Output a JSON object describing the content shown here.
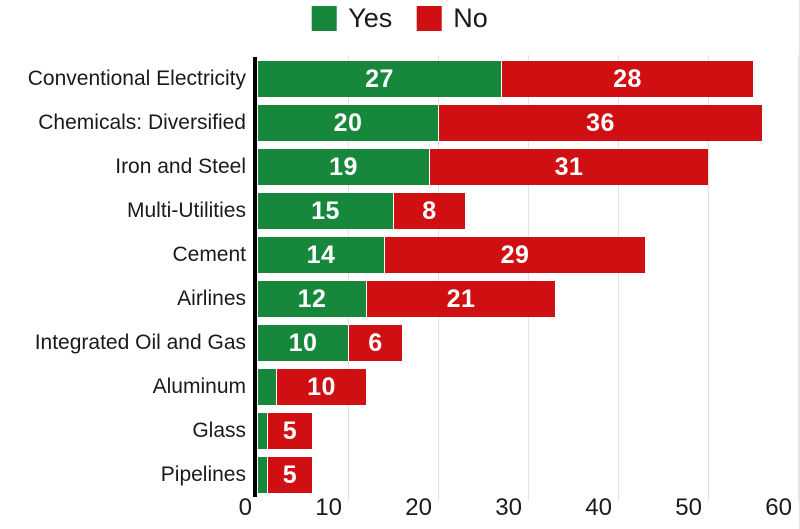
{
  "legend": {
    "yes_label": "Yes",
    "no_label": "No"
  },
  "colors": {
    "yes": "#17883b",
    "no": "#d00f12",
    "grid": "#e1e1e1",
    "axis": "#000000",
    "text": "#1a1a1a",
    "value_text": "#ffffff"
  },
  "chart_data": {
    "type": "bar",
    "orientation": "horizontal",
    "stacked": true,
    "title": "",
    "xlabel": "",
    "ylabel": "",
    "legend_position": "top",
    "grid": "vertical",
    "xlim": [
      0,
      60
    ],
    "x_ticks": [
      0,
      10,
      20,
      30,
      40,
      50,
      60
    ],
    "value_label_min": 5,
    "categories": [
      "Conventional Electricity",
      "Chemicals: Diversified",
      "Iron and Steel",
      "Multi-Utilities",
      "Cement",
      "Airlines",
      "Integrated Oil and Gas",
      "Aluminum",
      "Glass",
      "Pipelines"
    ],
    "series": [
      {
        "name": "Yes",
        "color_key": "yes",
        "values": [
          27,
          20,
          19,
          15,
          14,
          12,
          10,
          2,
          1,
          1
        ]
      },
      {
        "name": "No",
        "color_key": "no",
        "values": [
          28,
          36,
          31,
          8,
          29,
          21,
          6,
          10,
          5,
          5
        ]
      }
    ]
  }
}
